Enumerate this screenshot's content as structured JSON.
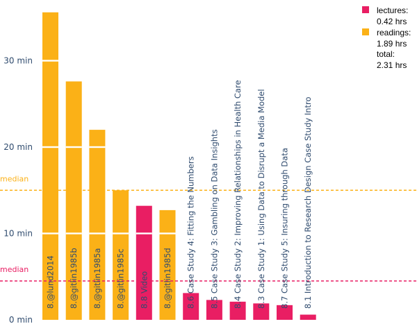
{
  "chart_data": {
    "type": "bar",
    "y_unit": "min",
    "ylim": [
      0,
      37
    ],
    "y_ticks": [
      {
        "value": 0,
        "label": "0 min"
      },
      {
        "value": 10,
        "label": "10 min"
      },
      {
        "value": 20,
        "label": "20 min"
      },
      {
        "value": 30,
        "label": "30 min"
      }
    ],
    "colors": {
      "lectures": "#e91e63",
      "readings": "#fbb117",
      "label_text": "#2f4b6e"
    },
    "bars": [
      {
        "label": "8.@lund2014",
        "kind": "readings",
        "value": 35.6,
        "separators": [
          10,
          20,
          30
        ]
      },
      {
        "label": "8.@gitlin1985b",
        "kind": "readings",
        "value": 27.6,
        "separators": [
          10,
          20
        ]
      },
      {
        "label": "8.@gitlin1985a",
        "kind": "readings",
        "value": 22.0,
        "separators": [
          10,
          20
        ]
      },
      {
        "label": "8.@gitlin1985c",
        "kind": "readings",
        "value": 15.0,
        "separators": [
          10
        ]
      },
      {
        "label": "8.8 Video",
        "kind": "lectures",
        "value": 13.2,
        "separators": [
          10
        ]
      },
      {
        "label": "8.@gitlin1985d",
        "kind": "readings",
        "value": 12.7,
        "separators": [
          10
        ]
      },
      {
        "label": "8.6 Case Study 4: Fitting the Numbers",
        "kind": "lectures",
        "value": 3.1,
        "separators": []
      },
      {
        "label": "8.5 Case Study 3: Gambling on Data Insights",
        "kind": "lectures",
        "value": 2.3,
        "separators": []
      },
      {
        "label": "8.4 Case Study 2: Improving Relationships in Health Care",
        "kind": "lectures",
        "value": 2.1,
        "separators": []
      },
      {
        "label": "8.3 Case Study 1: Using Data to Disrupt a Media Model",
        "kind": "lectures",
        "value": 1.9,
        "separators": []
      },
      {
        "label": "8.7 Case Study 5: Insuring through Data",
        "kind": "lectures",
        "value": 1.7,
        "separators": []
      },
      {
        "label": "8.1 Introduction to Research Design Case Study Intro",
        "kind": "lectures",
        "value": 0.6,
        "separators": []
      }
    ],
    "medians": [
      {
        "label": "median",
        "kind": "readings",
        "value": 15.0
      },
      {
        "label": "median",
        "kind": "lectures",
        "value": 4.5
      }
    ],
    "legend": {
      "position": "top-right",
      "items": [
        {
          "kind": "lectures",
          "label": "lectures:",
          "value": "0.42 hrs"
        },
        {
          "kind": "readings",
          "label": "readings:",
          "value": "1.89 hrs"
        }
      ],
      "total_label": "total:",
      "total_value": "2.31 hrs"
    }
  }
}
